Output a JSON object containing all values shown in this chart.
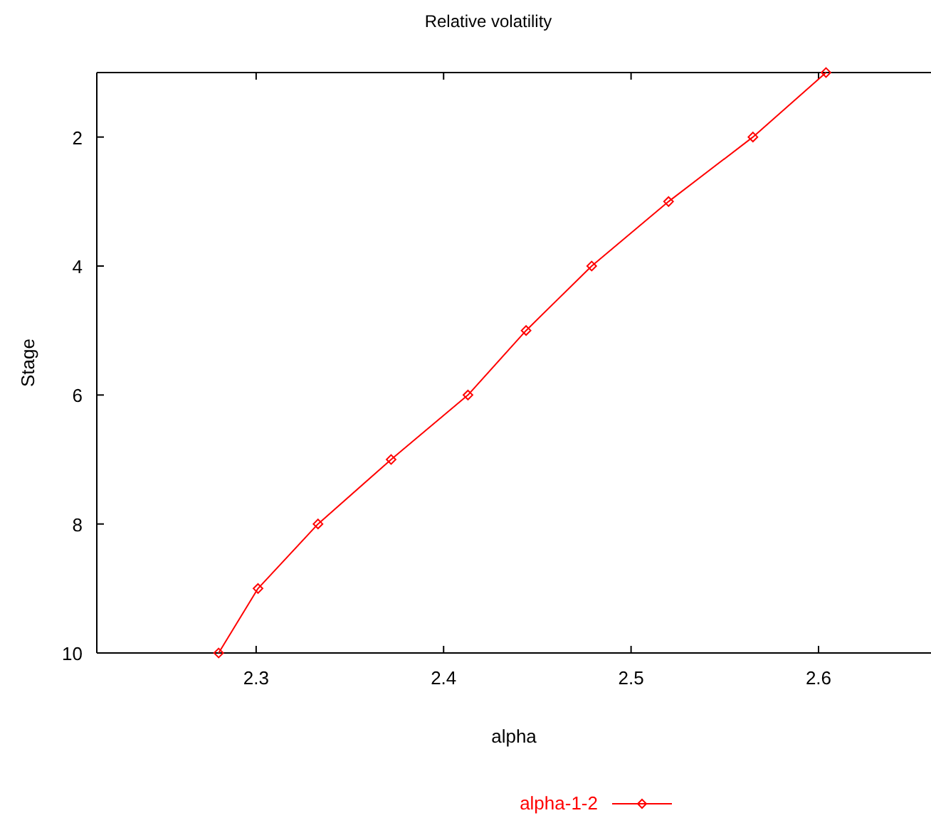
{
  "chart_data": {
    "type": "line",
    "title": "Relative volatility",
    "xlabel": "alpha",
    "ylabel": "Stage",
    "x": [
      2.604,
      2.565,
      2.52,
      2.479,
      2.444,
      2.413,
      2.372,
      2.333,
      2.301,
      2.28
    ],
    "series": [
      {
        "name": "alpha-1-2",
        "color": "#ff0000",
        "values": [
          1,
          2,
          3,
          4,
          5,
          6,
          7,
          8,
          9,
          10
        ]
      }
    ],
    "xlim": [
      2.215,
      2.66
    ],
    "xticks": [
      2.3,
      2.4,
      2.5,
      2.6
    ],
    "ylim": [
      10,
      1
    ],
    "yticks": [
      2,
      4,
      6,
      8,
      10
    ],
    "marker": "diamond",
    "line_style": "solid",
    "legend": "bottom",
    "grid": false
  }
}
